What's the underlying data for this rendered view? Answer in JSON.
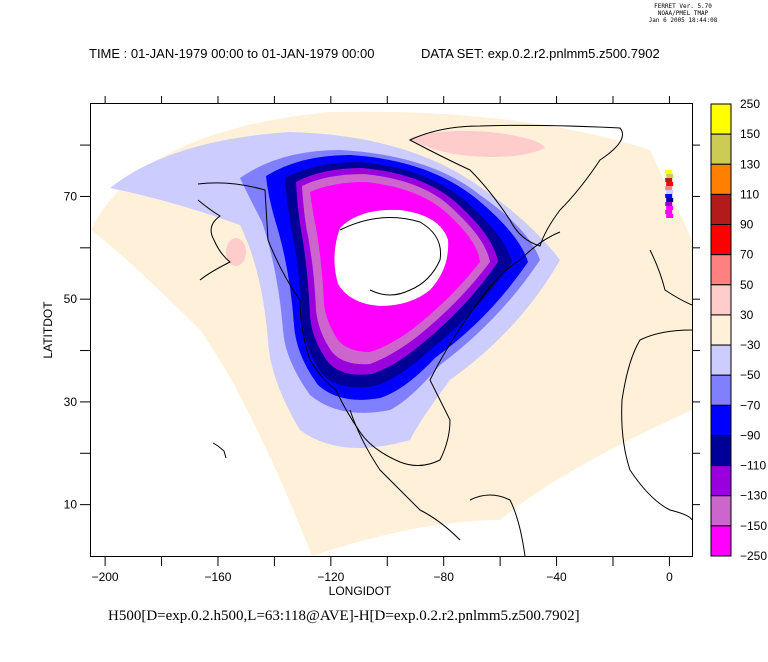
{
  "header": {
    "program_lines": [
      "FERRET Ver. 5.70",
      "NOAA/PMEL TMAP",
      "Jan  6 2005 18:44:08"
    ],
    "time_label": "TIME : 01-JAN-1979 00:00 to 01-JAN-1979 00:00",
    "dataset_label": "DATA SET: exp.0.2.r2.pnlmm5.z500.7902"
  },
  "caption": "H500[D=exp.0.2.h500,L=63:118@AVE]-H[D=exp.0.2.r2.pnlmm5.z500.7902]",
  "chart_data": {
    "type": "heatmap",
    "title": "TIME : 01-JAN-1979 00:00 to 01-JAN-1979 00:00   DATA SET: exp.0.2.r2.pnlmm5.z500.7902",
    "xlabel": "LONGIDOT",
    "ylabel": "LATITDOT",
    "xlim": [
      -205,
      8
    ],
    "ylim": [
      0,
      88
    ],
    "xticks": [
      -200,
      -180,
      -160,
      -140,
      -120,
      -100,
      -80,
      -60,
      -40,
      -20,
      0
    ],
    "xtick_labels": [
      "-200",
      "-160",
      "-120",
      "-80",
      "-40",
      "0"
    ],
    "xtick_label_values": [
      -200,
      -160,
      -120,
      -80,
      -40,
      0
    ],
    "yticks": [
      10,
      20,
      30,
      40,
      50,
      60,
      70,
      80
    ],
    "ytick_labels": [
      "10",
      "30",
      "50",
      "70"
    ],
    "ytick_label_values": [
      10,
      30,
      50,
      70
    ],
    "variable": "H500[D=exp.0.2.h500,L=63:118@AVE]-H[D=exp.0.2.r2.pnlmm5.z500.7902]",
    "colorbar": {
      "levels": [
        {
          "label": "250",
          "color": "#ffff00"
        },
        {
          "label": "150",
          "color": "#cccc55"
        },
        {
          "label": "130",
          "color": "#ff8000"
        },
        {
          "label": "110",
          "color": "#b31a1a"
        },
        {
          "label": "90",
          "color": "#ff0000"
        },
        {
          "label": "70",
          "color": "#ff8080"
        },
        {
          "label": "50",
          "color": "#ffcccc"
        },
        {
          "label": "30",
          "color": "#fff0d9"
        },
        {
          "label": "-30",
          "color": "#ccccff"
        },
        {
          "label": "-50",
          "color": "#8080ff"
        },
        {
          "label": "-70",
          "color": "#0000ff"
        },
        {
          "label": "-90",
          "color": "#000099"
        },
        {
          "label": "-110",
          "color": "#9900dd"
        },
        {
          "label": "-130",
          "color": "#cc66cc"
        },
        {
          "label": "-150",
          "color": "#ff00ff"
        },
        {
          "label": "-250",
          "color": ""
        }
      ]
    },
    "features": [
      {
        "name": "domain-positive-background",
        "value_band": "30",
        "color": "#fff0d9"
      },
      {
        "name": "negative-anomaly-ring",
        "center_lon": -100,
        "center_lat": 58,
        "min_band": "-250"
      },
      {
        "name": "missing-center",
        "center_lon": -100,
        "center_lat": 58
      },
      {
        "name": "greenland-positive",
        "center_lon": -55,
        "center_lat": 78,
        "value_band": "50"
      },
      {
        "name": "alaska-positive",
        "center_lon": -152,
        "center_lat": 58,
        "value_band": "50"
      }
    ]
  }
}
